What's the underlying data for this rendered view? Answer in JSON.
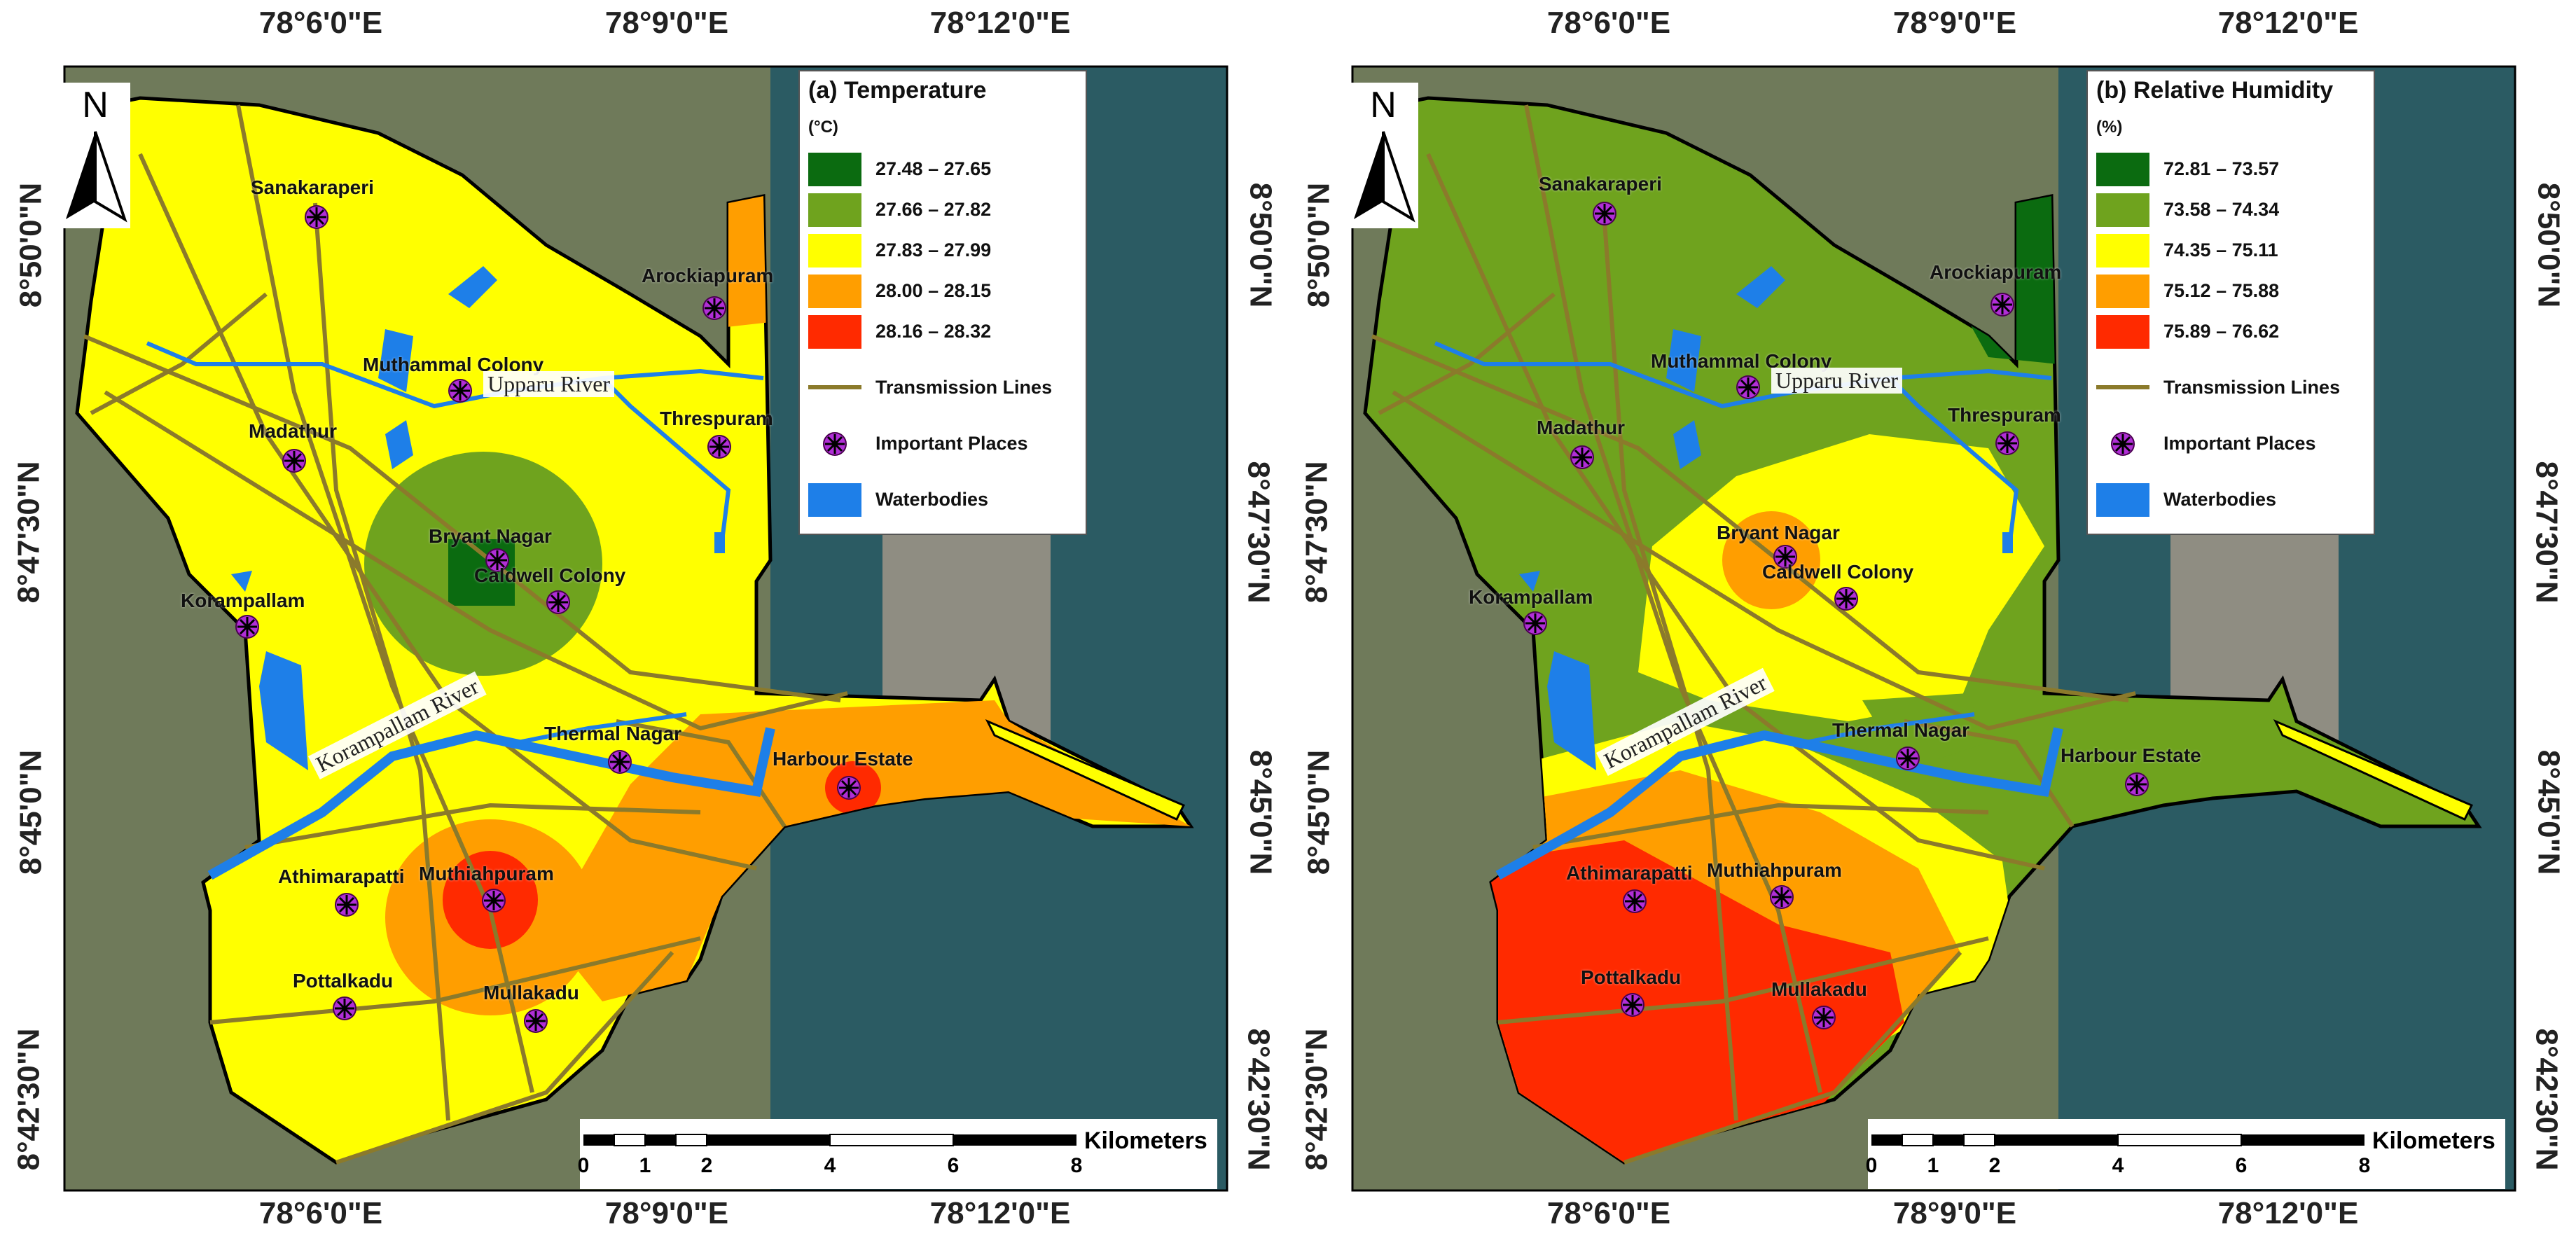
{
  "colors": {
    "dark_green": "#0b6b10",
    "green": "#6fa31e",
    "yellow": "#ffff00",
    "orange": "#ff9e00",
    "red": "#ff2a00",
    "transmission": "#8b7a2b",
    "water": "#1e7fe8",
    "marker": "#b02fd6",
    "sea": "#2b5b63",
    "land_bg": "#6f7a5a"
  },
  "panels": [
    {
      "id": "temperature",
      "legend_title": "(a) Temperature",
      "legend_unit": "(°C)",
      "classes": [
        {
          "label": "27.48 – 27.65",
          "color": "#0b6b10"
        },
        {
          "label": "27.66 – 27.82",
          "color": "#6fa31e"
        },
        {
          "label": "27.83 – 27.99",
          "color": "#ffff00"
        },
        {
          "label": "28.00 – 28.15",
          "color": "#ff9e00"
        },
        {
          "label": "28.16 – 28.32",
          "color": "#ff2a00"
        }
      ],
      "legend_items": {
        "transmission": "Transmission Lines",
        "places": "Important Places",
        "water": "Waterbodies"
      }
    },
    {
      "id": "humidity",
      "legend_title": "(b) Relative Humidity",
      "legend_unit": "(%)",
      "classes": [
        {
          "label": "72.81 – 73.57",
          "color": "#0b6b10"
        },
        {
          "label": "73.58 – 74.34",
          "color": "#6fa31e"
        },
        {
          "label": "74.35 – 75.11",
          "color": "#ffff00"
        },
        {
          "label": "75.12 – 75.88",
          "color": "#ff9e00"
        },
        {
          "label": "75.89 – 76.62",
          "color": "#ff2a00"
        }
      ],
      "legend_items": {
        "transmission": "Transmission Lines",
        "places": "Important Places",
        "water": "Waterbodies"
      }
    }
  ],
  "ticks": {
    "top": [
      "78°6'0\"E",
      "78°9'0\"E",
      "78°12'0\"E"
    ],
    "bottom": [
      "78°6'0\"E",
      "78°9'0\"E",
      "78°12'0\"E"
    ],
    "left": [
      "8°50'0\"N",
      "8°47'30\"N",
      "8°45'0\"N",
      "8°42'30\"N"
    ],
    "right": [
      "8°50'0\"N",
      "8°47'30\"N",
      "8°45'0\"N",
      "8°42'30\"N"
    ]
  },
  "north_label": "N",
  "places": [
    "Sanakaraperi",
    "Arockiapuram",
    "Muthammal Colony",
    "Madathur",
    "Threspuram",
    "Bryant Nagar",
    "Caldwell Colony",
    "Korampallam",
    "Thermal Nagar",
    "Harbour Estate",
    "Athimarapatti",
    "Muthiahpuram",
    "Pottalkadu",
    "Mullakadu"
  ],
  "rivers": {
    "upparu": "Upparu River",
    "korampallam": "Korampallam River"
  },
  "scale": {
    "unit": "Kilometers",
    "labels": [
      "0",
      "1",
      "2",
      "4",
      "6",
      "8"
    ],
    "values_km": [
      0,
      1,
      2,
      4,
      6,
      8
    ]
  }
}
